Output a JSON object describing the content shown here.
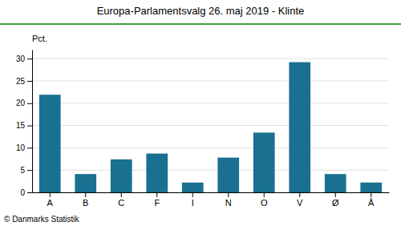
{
  "chart_data": {
    "type": "bar",
    "title": "Europa-Parlamentsvalg 26. maj 2019 - Klinte",
    "categories": [
      "A",
      "B",
      "C",
      "F",
      "I",
      "N",
      "O",
      "V",
      "Ø",
      "Å"
    ],
    "values": [
      21.9,
      4.1,
      7.4,
      8.7,
      2.2,
      7.8,
      13.4,
      29.2,
      4.1,
      2.2
    ],
    "color": "#1a7090",
    "ylabel": "Pct.",
    "ylim": [
      0,
      32
    ],
    "yticks": [
      0,
      5,
      10,
      15,
      20,
      25,
      30
    ],
    "grid": true,
    "annotations": [
      "© Danmarks Statistik"
    ]
  }
}
